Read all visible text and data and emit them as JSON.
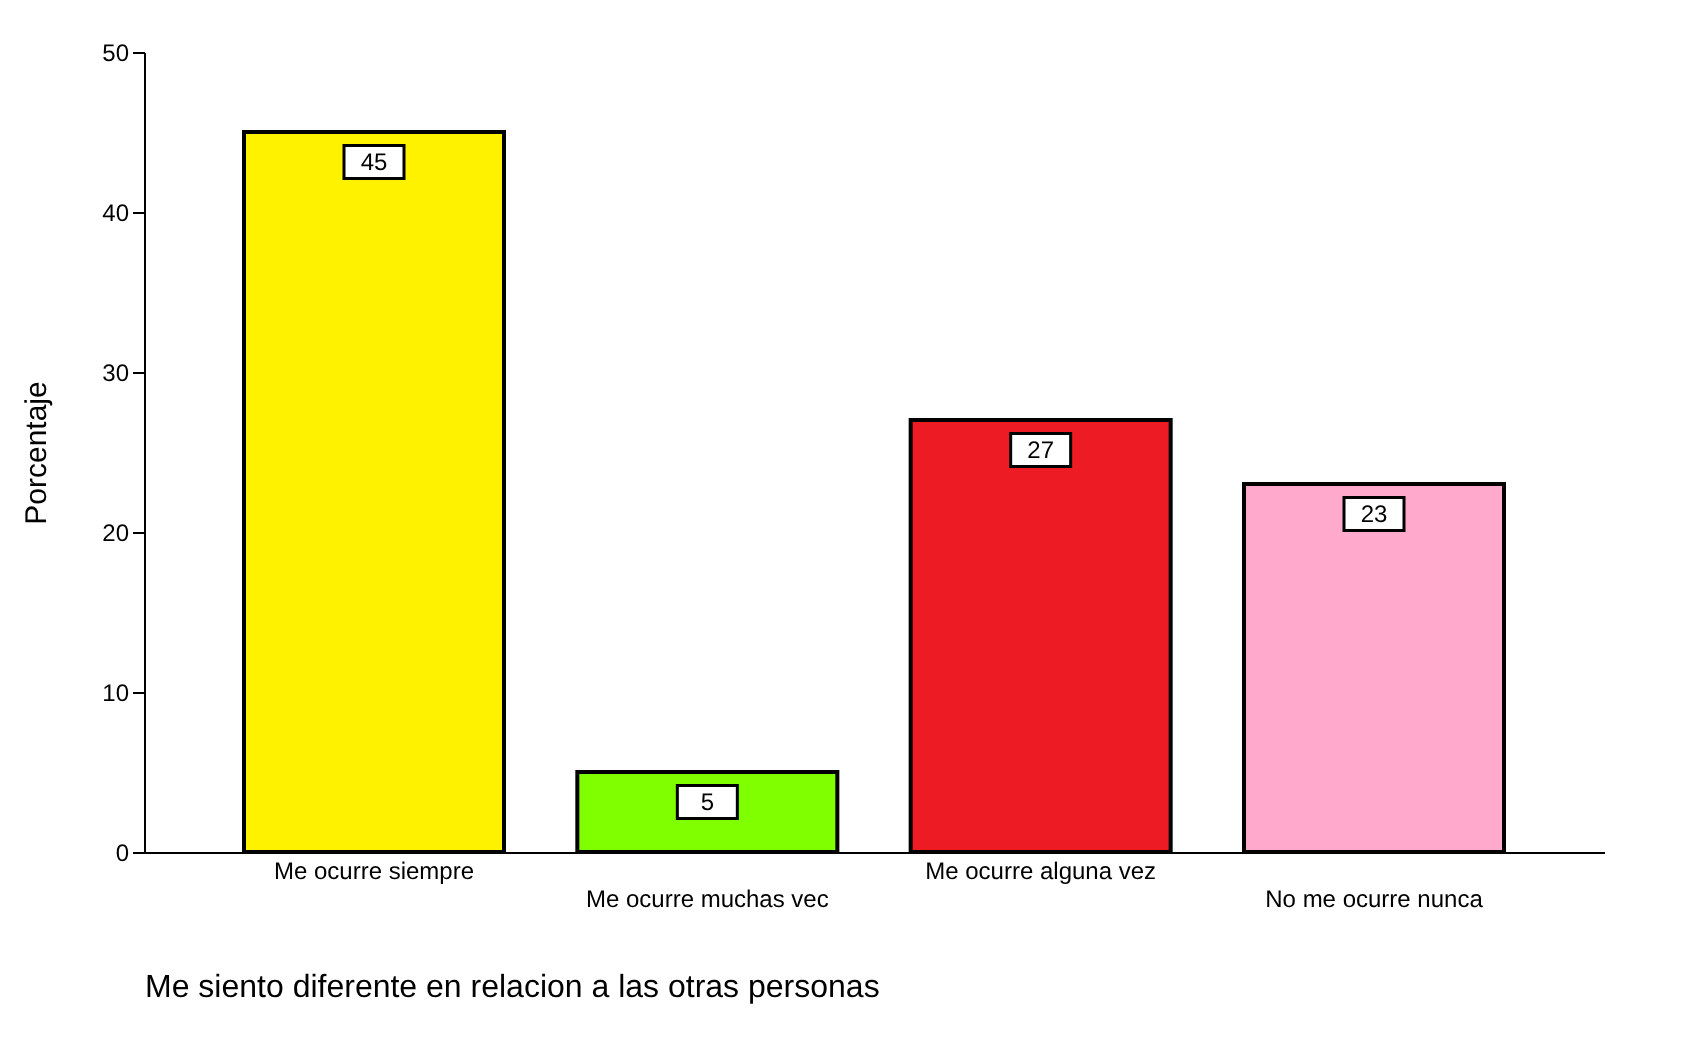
{
  "chart_data": {
    "type": "bar",
    "xlabel": "Me siento diferente en relacion a las otras personas",
    "ylabel": "Porcentaje",
    "categories": [
      "Me ocurre siempre",
      "Me ocurre muchas vec",
      "Me ocurre alguna vez",
      "No me ocurre nunca"
    ],
    "values": [
      45,
      5,
      27,
      23
    ],
    "colors": [
      "#fff200",
      "#80ff00",
      "#ed1c24",
      "#ffaacc"
    ],
    "ylim": [
      0,
      50
    ],
    "yticks": [
      0,
      10,
      20,
      30,
      40,
      50
    ],
    "grid": false,
    "data_labels": true
  }
}
